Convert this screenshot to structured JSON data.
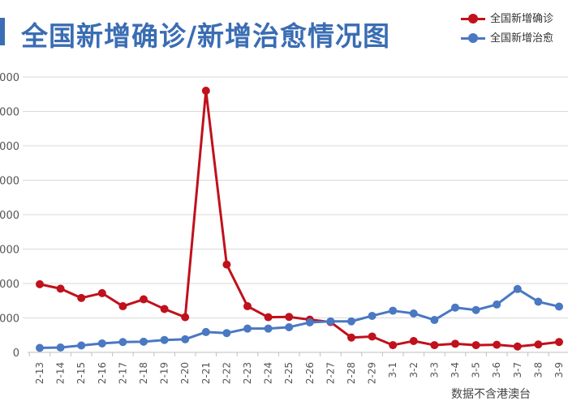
{
  "title": "全国新增确诊/新增治愈情况图",
  "note": "数据不含港澳台",
  "colors": {
    "confirmed": "#c0111c",
    "cured": "#4a78c2",
    "title": "#3a6db3",
    "grid": "#d9d9d9"
  },
  "chart_data": {
    "type": "line",
    "title": "全国新增确诊/新增治愈情况图",
    "xlabel": "",
    "ylabel": "",
    "categories": [
      "2-13",
      "2-14",
      "2-15",
      "2-16",
      "2-17",
      "2-18",
      "2-19",
      "2-20",
      "2-21",
      "2-22",
      "2-23",
      "2-24",
      "2-25",
      "2-26",
      "2-27",
      "2-28",
      "2-29",
      "3-1",
      "3-2",
      "3-3",
      "3-4",
      "3-5",
      "3-6",
      "3-7",
      "3-8",
      "3-9"
    ],
    "ylim": [
      0,
      8000
    ],
    "yticks": [
      0,
      1000,
      2000,
      3000,
      4000,
      5000,
      6000,
      7000,
      8000
    ],
    "ytick_labels": [
      "0",
      "000",
      "000",
      "000",
      "000",
      "000",
      "000",
      "000",
      "000"
    ],
    "grid": true,
    "legend_position": "top-right",
    "series": [
      {
        "name": "全国新增确诊",
        "color": "#c0111c",
        "values": [
          1980,
          1850,
          1580,
          1720,
          1340,
          1540,
          1260,
          1020,
          7600,
          2550,
          1340,
          1020,
          1030,
          950,
          880,
          430,
          460,
          210,
          330,
          210,
          250,
          210,
          220,
          170,
          230,
          300
        ]
      },
      {
        "name": "全国新增治愈",
        "color": "#4a78c2",
        "values": [
          130,
          140,
          200,
          260,
          300,
          310,
          360,
          380,
          590,
          560,
          690,
          690,
          730,
          870,
          900,
          900,
          1060,
          1210,
          1130,
          940,
          1300,
          1230,
          1390,
          1840,
          1470,
          1330
        ]
      }
    ]
  }
}
